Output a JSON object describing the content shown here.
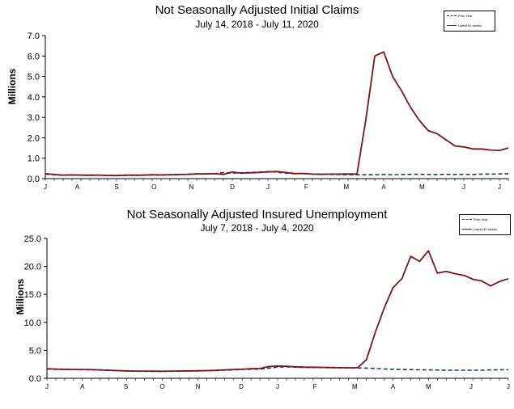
{
  "chart_data": [
    {
      "id": "chart1",
      "type": "line",
      "title": "Not Seasonally Adjusted Initial Claims",
      "subtitle": "July 14, 2018  - July 11, 2020",
      "ylabel": "Millions",
      "ylim": [
        0,
        7
      ],
      "yticks": [
        "0.0",
        "1.0",
        "2.0",
        "3.0",
        "4.0",
        "5.0",
        "6.0",
        "7.0"
      ],
      "xlim": [
        0,
        52
      ],
      "xticks": [
        {
          "label": "J",
          "x": 0
        },
        {
          "label": "A",
          "x": 3.6
        },
        {
          "label": "S",
          "x": 8
        },
        {
          "label": "O",
          "x": 12.2
        },
        {
          "label": "N",
          "x": 16.4
        },
        {
          "label": "D",
          "x": 21
        },
        {
          "label": "J",
          "x": 25
        },
        {
          "label": "F",
          "x": 29.3
        },
        {
          "label": "M",
          "x": 33.8
        },
        {
          "label": "A",
          "x": 38
        },
        {
          "label": "M",
          "x": 42.3
        },
        {
          "label": "J",
          "x": 47
        },
        {
          "label": "J",
          "x": 51
        }
      ],
      "legend": {
        "placement": "top-right",
        "items": [
          "Prior Year",
          "Latest 52 weeks"
        ]
      },
      "series": [
        {
          "name": "Prior Year",
          "style": "dashed",
          "color": "#1f3a6e",
          "x": [
            0,
            1,
            2,
            3,
            4,
            5,
            6,
            7,
            8,
            9,
            10,
            11,
            12,
            13,
            14,
            15,
            16,
            17,
            18,
            19,
            20,
            21,
            22,
            23,
            24,
            25,
            26,
            27,
            28,
            29,
            30,
            31,
            32,
            33,
            34,
            35,
            36,
            37,
            38,
            39,
            40,
            41,
            42,
            43,
            44,
            45,
            46,
            47,
            48,
            49,
            50,
            51,
            52
          ],
          "values": [
            0.22,
            0.19,
            0.17,
            0.18,
            0.17,
            0.16,
            0.17,
            0.16,
            0.15,
            0.16,
            0.16,
            0.17,
            0.18,
            0.17,
            0.19,
            0.2,
            0.21,
            0.24,
            0.23,
            0.24,
            0.3,
            0.27,
            0.29,
            0.3,
            0.32,
            0.34,
            0.32,
            0.27,
            0.24,
            0.26,
            0.22,
            0.22,
            0.21,
            0.2,
            0.19,
            0.19,
            0.19,
            0.19,
            0.2,
            0.19,
            0.2,
            0.21,
            0.21,
            0.2,
            0.2,
            0.21,
            0.2,
            0.21,
            0.2,
            0.22,
            0.22,
            0.23,
            0.24
          ]
        },
        {
          "name": "Latest 52 weeks",
          "style": "solid",
          "color": "#7a1616",
          "x": [
            0,
            1,
            2,
            3,
            4,
            5,
            6,
            7,
            8,
            9,
            10,
            11,
            12,
            13,
            14,
            15,
            16,
            17,
            18,
            19,
            20,
            21,
            22,
            23,
            24,
            25,
            26,
            27,
            28,
            29,
            30,
            31,
            32,
            33,
            34,
            35,
            36,
            37,
            38,
            39,
            40,
            41,
            42,
            43,
            44,
            45,
            46,
            47,
            48,
            49,
            50,
            51,
            52
          ],
          "values": [
            0.24,
            0.2,
            0.17,
            0.18,
            0.17,
            0.17,
            0.17,
            0.16,
            0.15,
            0.17,
            0.17,
            0.17,
            0.19,
            0.18,
            0.19,
            0.2,
            0.21,
            0.23,
            0.23,
            0.24,
            0.21,
            0.32,
            0.27,
            0.28,
            0.3,
            0.33,
            0.35,
            0.3,
            0.25,
            0.25,
            0.22,
            0.21,
            0.22,
            0.22,
            0.23,
            0.22,
            2.9,
            6.0,
            6.2,
            5.0,
            4.3,
            3.5,
            2.85,
            2.35,
            2.2,
            1.9,
            1.6,
            1.55,
            1.45,
            1.45,
            1.4,
            1.38,
            1.5
          ]
        }
      ]
    },
    {
      "id": "chart2",
      "type": "line",
      "title": "Not Seasonally Adjusted Insured Unemployment",
      "subtitle": "July 7, 2018 - July 4, 2020",
      "ylabel": "Millions",
      "ylim": [
        0,
        25
      ],
      "yticks": [
        "0.0",
        "5.0",
        "10.0",
        "15.0",
        "20.0",
        "25.0"
      ],
      "xlim": [
        0,
        52
      ],
      "xticks": [
        {
          "label": "J",
          "x": 0
        },
        {
          "label": "A",
          "x": 4
        },
        {
          "label": "S",
          "x": 8.9
        },
        {
          "label": "O",
          "x": 13
        },
        {
          "label": "N",
          "x": 17
        },
        {
          "label": "D",
          "x": 21.9
        },
        {
          "label": "J",
          "x": 26
        },
        {
          "label": "F",
          "x": 30.2
        },
        {
          "label": "M",
          "x": 34.7
        },
        {
          "label": "A",
          "x": 39
        },
        {
          "label": "M",
          "x": 43
        },
        {
          "label": "J",
          "x": 47.8
        },
        {
          "label": "J",
          "x": 52
        }
      ],
      "legend": {
        "placement": "top-right",
        "items": [
          "Prior Year",
          "Latest 52 weeks"
        ]
      },
      "series": [
        {
          "name": "Prior Year",
          "style": "dashed",
          "color": "#1f3a6e",
          "x": [
            0,
            1,
            2,
            3,
            4,
            5,
            6,
            7,
            8,
            9,
            10,
            11,
            12,
            13,
            14,
            15,
            16,
            17,
            18,
            19,
            20,
            21,
            22,
            23,
            24,
            25,
            26,
            27,
            28,
            29,
            30,
            31,
            32,
            33,
            34,
            35,
            36,
            37,
            38,
            39,
            40,
            41,
            42,
            43,
            44,
            45,
            46,
            47,
            48,
            49,
            50,
            51,
            52
          ],
          "values": [
            1.65,
            1.6,
            1.58,
            1.56,
            1.55,
            1.52,
            1.48,
            1.42,
            1.35,
            1.3,
            1.27,
            1.26,
            1.25,
            1.24,
            1.26,
            1.28,
            1.3,
            1.32,
            1.35,
            1.4,
            1.45,
            1.5,
            1.6,
            1.62,
            1.65,
            1.8,
            2.0,
            2.05,
            1.98,
            1.95,
            1.93,
            1.92,
            1.9,
            1.88,
            1.85,
            1.84,
            1.82,
            1.75,
            1.68,
            1.62,
            1.58,
            1.56,
            1.52,
            1.5,
            1.47,
            1.45,
            1.45,
            1.44,
            1.45,
            1.45,
            1.5,
            1.52,
            1.55
          ]
        },
        {
          "name": "Latest 52 weeks",
          "style": "solid",
          "color": "#7a1616",
          "x": [
            0,
            1,
            2,
            3,
            4,
            5,
            6,
            7,
            8,
            9,
            10,
            11,
            12,
            13,
            14,
            15,
            16,
            17,
            18,
            19,
            20,
            21,
            22,
            23,
            24,
            25,
            26,
            27,
            28,
            29,
            30,
            31,
            32,
            33,
            34,
            35,
            36,
            37,
            38,
            39,
            40,
            41,
            42,
            43,
            44,
            45,
            46,
            47,
            48,
            49,
            50,
            51,
            52
          ],
          "values": [
            1.7,
            1.65,
            1.6,
            1.58,
            1.57,
            1.55,
            1.5,
            1.44,
            1.38,
            1.32,
            1.29,
            1.28,
            1.27,
            1.26,
            1.28,
            1.3,
            1.32,
            1.35,
            1.38,
            1.42,
            1.5,
            1.58,
            1.62,
            1.7,
            1.75,
            2.1,
            2.2,
            2.15,
            2.05,
            2.0,
            1.98,
            1.95,
            1.92,
            1.9,
            1.88,
            1.9,
            3.3,
            8.2,
            12.5,
            16.2,
            17.8,
            21.8,
            20.9,
            22.8,
            18.8,
            19.1,
            18.7,
            18.4,
            17.7,
            17.4,
            16.5,
            17.3,
            17.8
          ]
        }
      ]
    }
  ]
}
